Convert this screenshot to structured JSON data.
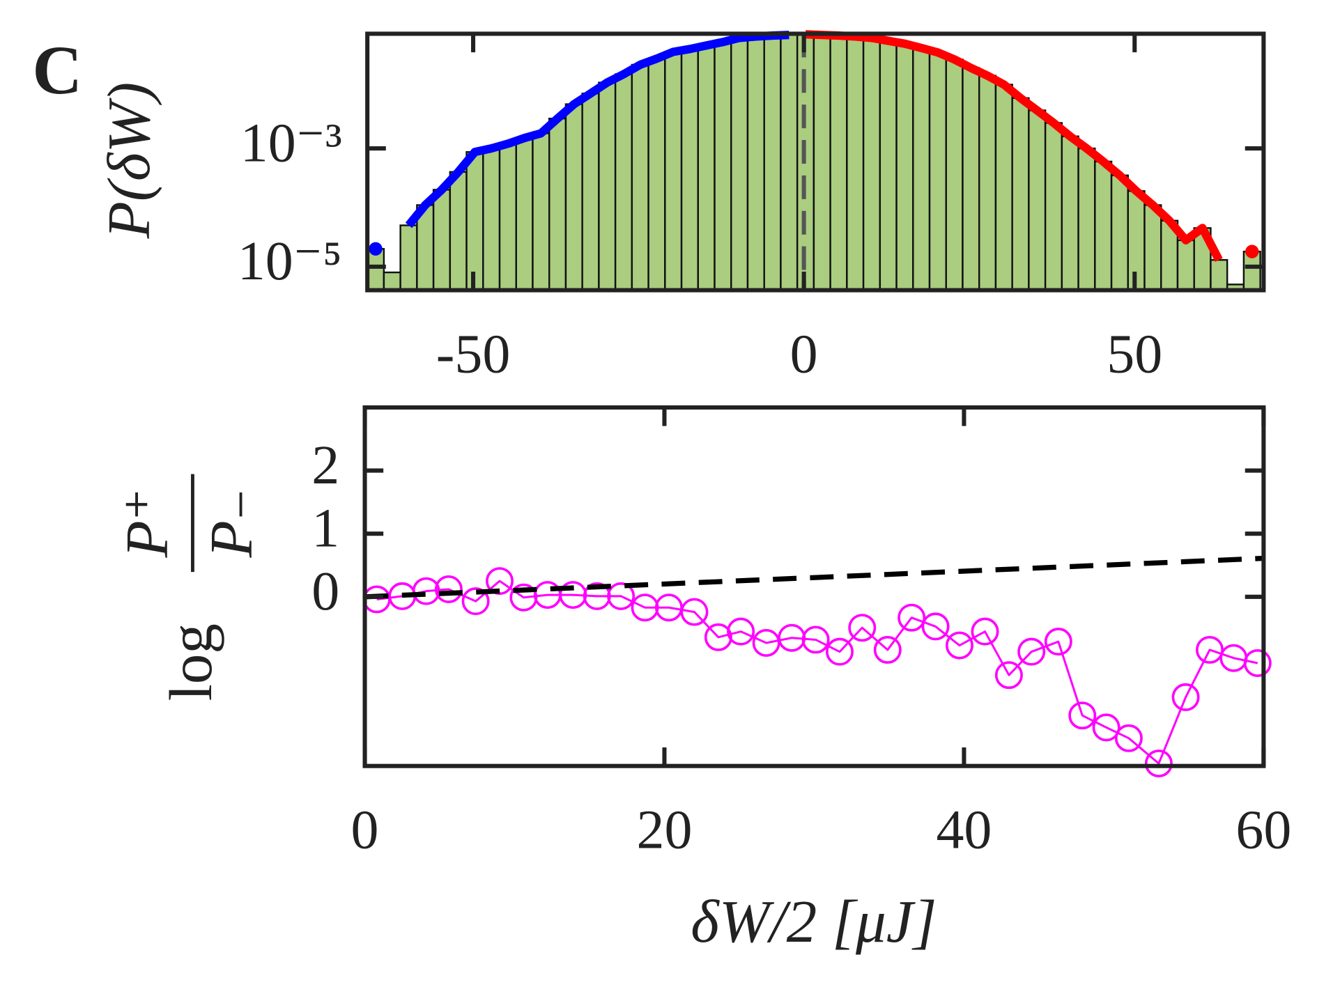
{
  "chart_data": [
    {
      "type": "histogram",
      "panel_label": "C",
      "ylabel": "P(δW)",
      "log_y": true,
      "bins": [
        -66,
        -63.5,
        -61,
        -58.5,
        -56,
        -53.5,
        -51,
        -48.5,
        -46,
        -43.5,
        -41,
        -38.5,
        -36,
        -33.5,
        -31,
        -28.5,
        -26,
        -23.5,
        -21,
        -18.5,
        -16,
        -13.5,
        -11,
        -8.5,
        -6,
        -3.5,
        -1,
        1.5,
        4,
        6.5,
        9,
        11.5,
        14,
        16.5,
        19,
        21.5,
        24,
        26.5,
        29,
        31.5,
        34,
        36.5,
        39,
        41.5,
        44,
        46.5,
        49,
        51.5,
        54,
        56.5,
        59,
        61.5,
        64,
        66.5,
        69
      ],
      "values": [
        2e-05,
        8e-06,
        5e-05,
        0.00011,
        0.0002,
        0.0004,
        0.00087,
        0.001,
        0.0012,
        0.0015,
        0.0018,
        0.0032,
        0.0056,
        0.0085,
        0.013,
        0.018,
        0.026,
        0.033,
        0.043,
        0.048,
        0.055,
        0.063,
        0.074,
        0.078,
        0.081,
        0.083,
        0.085,
        0.083,
        0.081,
        0.078,
        0.074,
        0.066,
        0.059,
        0.05,
        0.042,
        0.032,
        0.023,
        0.017,
        0.012,
        0.0071,
        0.0044,
        0.0027,
        0.0016,
        0.001,
        0.0006,
        0.00035,
        0.00019,
        0.00011,
        6e-05,
        2.8e-05,
        4.5e-05,
        1.3e-05,
        5e-06,
        1.8e-05
      ],
      "color": "#aacd80",
      "edgecolor": "#111111",
      "series": [
        {
          "color": "#0000ff",
          "x": [
            -64.75,
            -62.25,
            -59.75,
            -57.25,
            -54.75,
            -52.25,
            -49.75,
            -47.25,
            -44.75,
            -42.25,
            -39.75,
            -37.25,
            -34.75,
            -32.25,
            -29.75,
            -27.25,
            -24.75,
            -22.25,
            -19.75,
            -17.25,
            -14.75,
            -12.25,
            -9.75,
            -7.25,
            -4.75,
            -2.25
          ],
          "values": [
            2e-05,
            null,
            5e-05,
            0.00011,
            0.0002,
            0.0004,
            0.00087,
            0.001,
            0.0012,
            0.0015,
            0.0018,
            0.0032,
            0.0056,
            0.0085,
            0.013,
            0.018,
            0.026,
            0.033,
            0.043,
            0.048,
            0.055,
            0.063,
            0.074,
            0.078,
            0.081,
            0.083
          ]
        },
        {
          "color": "#ff0000",
          "x": [
            0.25,
            2.75,
            5.25,
            7.75,
            10.25,
            12.75,
            15.25,
            17.75,
            20.25,
            22.75,
            25.25,
            27.75,
            30.25,
            32.75,
            35.25,
            37.75,
            40.25,
            42.75,
            45.25,
            47.75,
            50.25,
            52.75,
            55.25,
            57.75,
            60.25,
            62.75,
            65.25,
            67.75
          ],
          "values": [
            0.085,
            0.083,
            0.081,
            0.078,
            0.074,
            0.066,
            0.059,
            0.05,
            0.042,
            0.032,
            0.023,
            0.017,
            0.012,
            0.0071,
            0.0044,
            0.0027,
            0.0016,
            0.001,
            0.0006,
            0.00035,
            0.00019,
            0.00011,
            6e-05,
            2.8e-05,
            4.5e-05,
            1.3e-05,
            null,
            1.8e-05
          ]
        }
      ],
      "vlines": [
        0
      ],
      "xlim": [
        -66,
        69.5
      ],
      "xticks": [
        -50,
        0,
        50
      ],
      "ylim": [
        4e-06,
        0.087
      ],
      "yticks": [
        {
          "value": 0.001,
          "label": "10⁻³"
        },
        {
          "value": 1e-05,
          "label": "10⁻⁵"
        }
      ]
    },
    {
      "type": "line",
      "xlabel": "δW/2 [μJ]",
      "ylabel": {
        "prefix": "log",
        "numerator": "P⁺",
        "denominator": "P₋"
      },
      "xlim": [
        0,
        60
      ],
      "xticks": [
        0,
        20,
        40,
        60
      ],
      "ylim": [
        -2.68,
        3
      ],
      "yticks": [
        0,
        1,
        2
      ],
      "series": [
        {
          "color": "#ff00ff",
          "marker": "circle",
          "x": [
            0.8,
            2.5,
            4.1,
            5.6,
            7.4,
            9.0,
            10.6,
            12.2,
            13.9,
            15.5,
            17.1,
            18.7,
            20.3,
            22.0,
            23.6,
            25.1,
            26.8,
            28.5,
            30.1,
            31.7,
            33.2,
            34.9,
            36.5,
            38.1,
            39.7,
            41.4,
            43.0,
            44.5,
            46.3,
            47.9,
            49.5,
            51.0,
            53.0,
            54.8,
            56.4,
            58.0,
            59.6
          ],
          "values": [
            -0.04,
            0.01,
            0.09,
            0.12,
            -0.07,
            0.25,
            -0.01,
            0.03,
            0.03,
            0.01,
            0.01,
            -0.17,
            -0.17,
            -0.24,
            -0.64,
            -0.55,
            -0.73,
            -0.65,
            -0.68,
            -0.87,
            -0.49,
            -0.84,
            -0.33,
            -0.47,
            -0.77,
            -0.55,
            -1.24,
            -0.87,
            -0.71,
            -1.88,
            -2.07,
            -2.24,
            -2.64,
            -1.59,
            -0.84,
            -0.97,
            -1.05
          ]
        },
        {
          "color": "#000000",
          "dash": true,
          "x": [
            0,
            60
          ],
          "values": [
            0,
            0.61
          ]
        }
      ]
    }
  ]
}
